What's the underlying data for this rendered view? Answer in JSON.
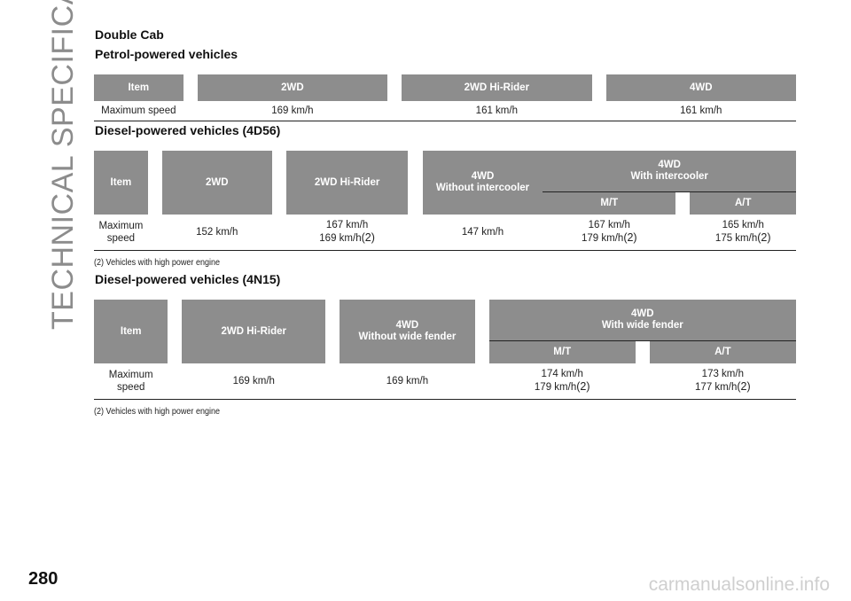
{
  "side_title": "TECHNICAL SPECIFICATIONS",
  "page_number": "280",
  "watermark": "carmanualsonline.info",
  "section_title": "Double Cab",
  "petrol": {
    "title": "Petrol-powered vehicles",
    "headers": [
      "Item",
      "2WD",
      "2WD Hi-Rider",
      "4WD"
    ],
    "row": [
      "Maximum speed",
      "169 km/h",
      "161 km/h",
      "161 km/h"
    ]
  },
  "diesel_4d56": {
    "title": "Diesel-powered vehicles (4D56)",
    "h_item": "Item",
    "h_2wd": "2WD",
    "h_2wd_hi": "2WD Hi-Rider",
    "h_4wd_no_ic_1": "4WD",
    "h_4wd_no_ic_2": "Without intercooler",
    "h_4wd_ic_1": "4WD",
    "h_4wd_ic_2": "With intercooler",
    "h_mt": "M/T",
    "h_at": "A/T",
    "row_label_1": "Maximum",
    "row_label_2": "speed",
    "v_2wd": "152 km/h",
    "v_2wd_hi_1": "167 km/h",
    "v_2wd_hi_2": "169 km/h",
    "v_4wd_no_ic": "147 km/h",
    "v_mt_1": "167 km/h",
    "v_mt_2": "179 km/h",
    "v_at_1": "165 km/h",
    "v_at_2": "175 km/h",
    "ref": "(2)",
    "note": "(2) Vehicles with high power engine"
  },
  "diesel_4n15": {
    "title": "Diesel-powered vehicles (4N15)",
    "h_item": "Item",
    "h_2wd_hi": "2WD Hi-Rider",
    "h_4wd_nf_1": "4WD",
    "h_4wd_nf_2": "Without wide fender",
    "h_4wd_wf_1": "4WD",
    "h_4wd_wf_2": "With wide fender",
    "h_mt": "M/T",
    "h_at": "A/T",
    "row_label_1": "Maximum",
    "row_label_2": "speed",
    "v_2wd_hi": "169 km/h",
    "v_4wd_nf": "169 km/h",
    "v_mt_1": "174 km/h",
    "v_mt_2": "179 km/h",
    "v_at_1": "173 km/h",
    "v_at_2": "177 km/h",
    "ref": "(2)",
    "note": "(2) Vehicles with high power engine"
  }
}
